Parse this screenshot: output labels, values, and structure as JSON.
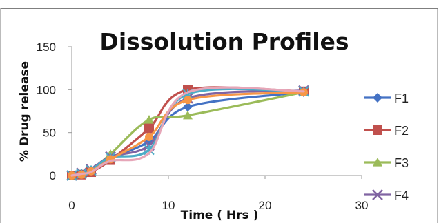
{
  "chart_data": {
    "type": "line",
    "title": "Dissolution Profiles",
    "xlabel": "Time ( Hrs )",
    "ylabel": "% Drug release",
    "xlim": [
      0,
      30
    ],
    "ylim": [
      0,
      150
    ],
    "xticks": [
      0,
      10,
      20,
      30
    ],
    "yticks": [
      0,
      50,
      100,
      150
    ],
    "grid": false,
    "legend_position": "right",
    "smooth": true,
    "series": [
      {
        "name": "F1",
        "color": "#4472C4",
        "marker": "diamond",
        "x": [
          0,
          1,
          2,
          4,
          8,
          12,
          24
        ],
        "y": [
          0,
          2,
          5,
          20,
          40,
          80,
          97
        ]
      },
      {
        "name": "F2",
        "color": "#C0504D",
        "marker": "square",
        "x": [
          0,
          1,
          2,
          4,
          8,
          12,
          24
        ],
        "y": [
          0,
          1,
          4,
          18,
          55,
          100,
          98
        ]
      },
      {
        "name": "F3",
        "color": "#9BBB59",
        "marker": "triangle",
        "x": [
          0,
          1,
          2,
          4,
          8,
          12,
          24
        ],
        "y": [
          0,
          2,
          6,
          25,
          65,
          70,
          97
        ]
      },
      {
        "name": "F4",
        "color": "#8064A2",
        "marker": "x",
        "x": [
          0,
          1,
          2,
          4,
          8,
          12,
          24
        ],
        "y": [
          0,
          3,
          7,
          22,
          35,
          90,
          99
        ]
      },
      {
        "name": "",
        "color": "#4BACC6",
        "marker": "star",
        "x": [
          0,
          1,
          2,
          4,
          8,
          12,
          24
        ],
        "y": [
          0,
          2,
          6,
          21,
          30,
          95,
          98
        ]
      },
      {
        "name": "",
        "color": "#F79646",
        "marker": "circle",
        "x": [
          0,
          1,
          2,
          4,
          8,
          12,
          24
        ],
        "y": [
          0,
          1,
          5,
          19,
          45,
          88,
          97
        ]
      },
      {
        "name": "",
        "color": "#E6A6B8",
        "marker": "none",
        "x": [
          0,
          1,
          2,
          4,
          8,
          12,
          24
        ],
        "y": [
          0,
          2,
          4,
          17,
          26,
          97,
          98
        ]
      }
    ]
  }
}
